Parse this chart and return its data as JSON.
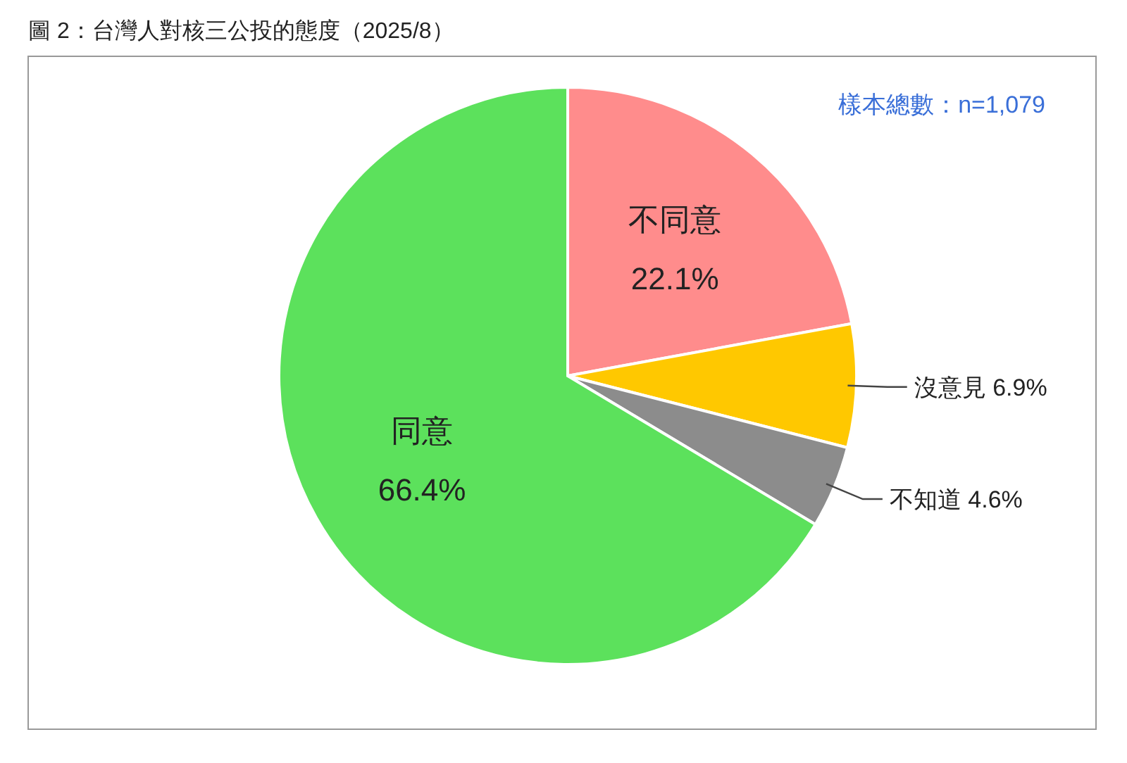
{
  "chart_data": {
    "type": "pie",
    "title": "圖 2：台灣人對核三公投的態度（2025/8）",
    "annotations": [
      "樣本總數：n=1,079"
    ],
    "categories": [
      "不同意",
      "沒意見",
      "不知道",
      "同意"
    ],
    "values": [
      22.1,
      6.9,
      4.6,
      66.4
    ],
    "colors": [
      "#ff8c8c",
      "#ffc800",
      "#8c8c8c",
      "#5ce15c"
    ],
    "value_labels": [
      "22.1%",
      "6.9%",
      "4.6%",
      "66.4%"
    ]
  }
}
